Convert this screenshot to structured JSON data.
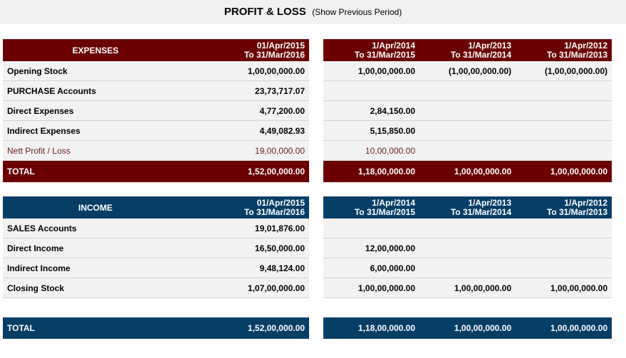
{
  "title": "PROFIT & LOSS",
  "show_previous_label": "(Show Previous Period)",
  "current_period": {
    "line1": "01/Apr/2015",
    "line2": "To  31/Mar/2016"
  },
  "previous_periods": [
    {
      "line1": "1/Apr/2014",
      "line2": "To  31/Mar/2015"
    },
    {
      "line1": "1/Apr/2013",
      "line2": "To  31/Mar/2014"
    },
    {
      "line1": "1/Apr/2012",
      "line2": "To  31/Mar/2013"
    }
  ],
  "expenses": {
    "header": "EXPENSES",
    "rows": [
      {
        "label": "Opening Stock",
        "current": "1,00,00,000.00",
        "previous": [
          "1,00,00,000.00",
          "(1,00,00,000.00)",
          "(1,00,00,000.00)"
        ]
      },
      {
        "label": "PURCHASE Accounts",
        "current": "23,73,717.07",
        "previous": [
          "",
          "",
          ""
        ]
      },
      {
        "label": "Direct Expenses",
        "current": "4,77,200.00",
        "previous": [
          "2,84,150.00",
          "",
          ""
        ]
      },
      {
        "label": "Indirect Expenses",
        "current": "4,49,082.93",
        "previous": [
          "5,15,850.00",
          "",
          ""
        ]
      },
      {
        "label": "Nett Profit / Loss",
        "current": "19,00,000.00",
        "previous": [
          "10,00,000.00",
          "",
          ""
        ]
      }
    ],
    "total": {
      "label": "TOTAL",
      "current": "1,52,00,000.00",
      "previous": [
        "1,18,00,000.00",
        "1,00,00,000.00",
        "1,00,00,000.00"
      ]
    }
  },
  "income": {
    "header": "INCOME",
    "rows": [
      {
        "label": "SALES Accounts",
        "current": "19,01,876.00",
        "previous": [
          "",
          "",
          ""
        ]
      },
      {
        "label": "Direct Income",
        "current": "16,50,000.00",
        "previous": [
          "12,00,000.00",
          "",
          ""
        ]
      },
      {
        "label": "Indirect Income",
        "current": "9,48,124.00",
        "previous": [
          "6,00,000.00",
          "",
          ""
        ]
      },
      {
        "label": "Closing Stock",
        "current": "1,07,00,000.00",
        "previous": [
          "1,00,00,000.00",
          "1,00,00,000.00",
          "1,00,00,000.00"
        ]
      }
    ],
    "total": {
      "label": "TOTAL",
      "current": "1,52,00,000.00",
      "previous": [
        "1,18,00,000.00",
        "1,00,00,000.00",
        "1,00,00,000.00"
      ]
    }
  }
}
